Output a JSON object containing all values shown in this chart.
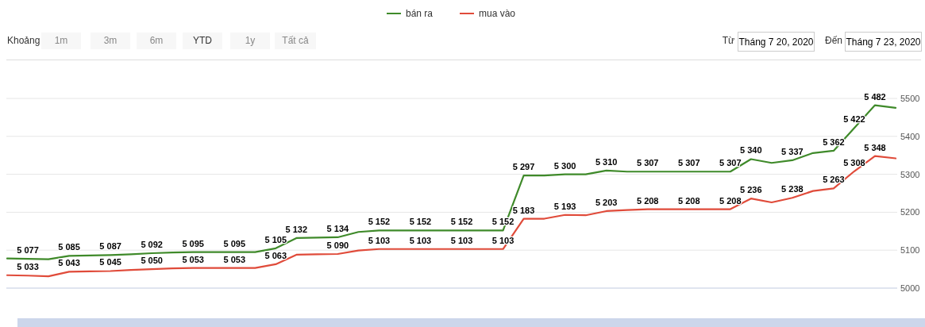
{
  "chart_data": {
    "type": "line",
    "categories": [
      null,
      null,
      null,
      null,
      null,
      null,
      null,
      null,
      null,
      null,
      null,
      null,
      null,
      null,
      null,
      null,
      null,
      null,
      null,
      null,
      null,
      null,
      null,
      null,
      null,
      null,
      null,
      null,
      null,
      null,
      null,
      null,
      null,
      null,
      null,
      null,
      null,
      null,
      null,
      null,
      null,
      null,
      null,
      null
    ],
    "series": [
      {
        "name": "bán ra",
        "color": "#3f8a2a",
        "values": [
          5078,
          5077,
          5076,
          5085,
          5086,
          5087,
          5089,
          5092,
          5094,
          5095,
          5095,
          5095,
          5095,
          5105,
          5132,
          5133,
          5134,
          5148,
          5152,
          5152,
          5152,
          5152,
          5152,
          5152,
          5152,
          5297,
          5297,
          5300,
          5300,
          5310,
          5307,
          5307,
          5307,
          5307,
          5307,
          5307,
          5340,
          5330,
          5337,
          5356,
          5362,
          5422,
          5482,
          5475
        ],
        "value_labels": [
          null,
          "5 077",
          null,
          "5 085",
          null,
          "5 087",
          null,
          "5 092",
          null,
          "5 095",
          null,
          "5 095",
          null,
          "5 105",
          "5 132",
          null,
          "5 134",
          null,
          "5 152",
          null,
          "5 152",
          null,
          "5 152",
          null,
          "5 152",
          "5 297",
          null,
          "5 300",
          null,
          "5 310",
          null,
          "5 307",
          null,
          "5 307",
          null,
          "5 307",
          "5 340",
          null,
          "5 337",
          null,
          "5 362",
          "5 422",
          "5 482",
          null
        ]
      },
      {
        "name": "mua vào",
        "color": "#e04b3a",
        "values": [
          5034,
          5033,
          5031,
          5043,
          5044,
          5045,
          5048,
          5050,
          5052,
          5053,
          5053,
          5053,
          5053,
          5063,
          5088,
          5089,
          5090,
          5099,
          5103,
          5103,
          5103,
          5103,
          5103,
          5103,
          5103,
          5183,
          5183,
          5193,
          5192,
          5203,
          5206,
          5208,
          5208,
          5208,
          5208,
          5208,
          5236,
          5226,
          5238,
          5256,
          5263,
          5308,
          5348,
          5342
        ],
        "value_labels": [
          null,
          "5 033",
          null,
          "5 043",
          null,
          "5 045",
          null,
          "5 050",
          null,
          "5 053",
          null,
          "5 053",
          null,
          "5 063",
          null,
          null,
          "5 090",
          null,
          "5 103",
          null,
          "5 103",
          null,
          "5 103",
          null,
          "5 103",
          "5 183",
          null,
          "5 193",
          null,
          "5 203",
          null,
          "5 208",
          null,
          "5 208",
          null,
          "5 208",
          "5 236",
          null,
          "5 238",
          null,
          "5 263",
          "5 308",
          "5 348",
          null
        ]
      }
    ],
    "ylim": [
      5000,
      5500
    ],
    "yticks": [
      5000,
      5100,
      5200,
      5300,
      5400,
      5500
    ],
    "grid": "y",
    "legend": "top",
    "marker": "none",
    "line_style": "solid",
    "tick_labels": "y",
    "annotations": [
      "Khoảng",
      "1m",
      "3m",
      "6m",
      "YTD",
      "1y",
      "Tất cả",
      "Từ",
      "Tháng 7 20, 2020",
      "Đến",
      "Tháng 7 23, 2020"
    ]
  }
}
